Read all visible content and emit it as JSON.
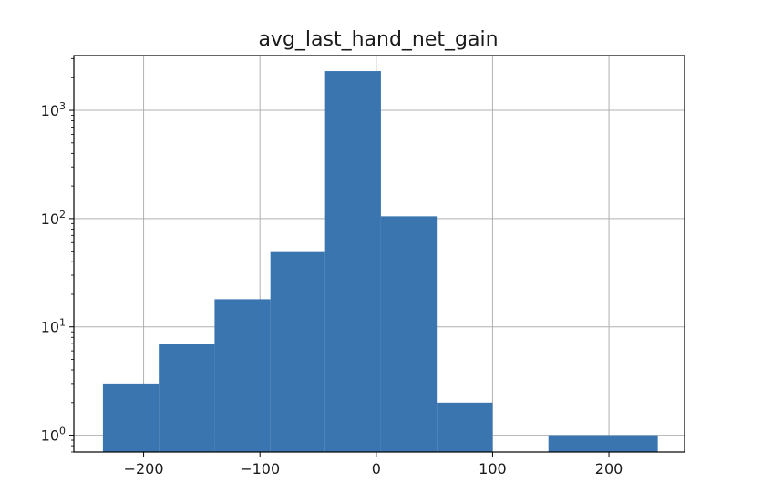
{
  "chart_data": {
    "type": "bar",
    "subtype": "histogram",
    "title": "avg_last_hand_net_gain",
    "xlabel": "",
    "ylabel": "",
    "yscale": "log",
    "grid": true,
    "legend": "none",
    "bar_color": "#3a75b0",
    "grid_color": "#b0b0b0",
    "xlim": [
      -260,
      265
    ],
    "ylim": [
      0.7,
      3200
    ],
    "xticks": [
      {
        "value": -200,
        "label": "−200"
      },
      {
        "value": -100,
        "label": "−100"
      },
      {
        "value": 0,
        "label": "0"
      },
      {
        "value": 100,
        "label": "100"
      },
      {
        "value": 200,
        "label": "200"
      }
    ],
    "yticks": [
      {
        "value": 1,
        "base": "10",
        "exp": "0"
      },
      {
        "value": 10,
        "base": "10",
        "exp": "1"
      },
      {
        "value": 100,
        "base": "10",
        "exp": "2"
      },
      {
        "value": 1000,
        "base": "10",
        "exp": "3"
      }
    ],
    "bins": [
      {
        "x0": -235,
        "x1": -187,
        "count": 3
      },
      {
        "x0": -187,
        "x1": -139,
        "count": 7
      },
      {
        "x0": -139,
        "x1": -91,
        "count": 18
      },
      {
        "x0": -91,
        "x1": -44,
        "count": 50
      },
      {
        "x0": -44,
        "x1": 4,
        "count": 2300
      },
      {
        "x0": 4,
        "x1": 52,
        "count": 105
      },
      {
        "x0": 52,
        "x1": 100,
        "count": 2
      },
      {
        "x0": 100,
        "x1": 148,
        "count": 0
      },
      {
        "x0": 148,
        "x1": 242,
        "count": 1
      }
    ]
  }
}
